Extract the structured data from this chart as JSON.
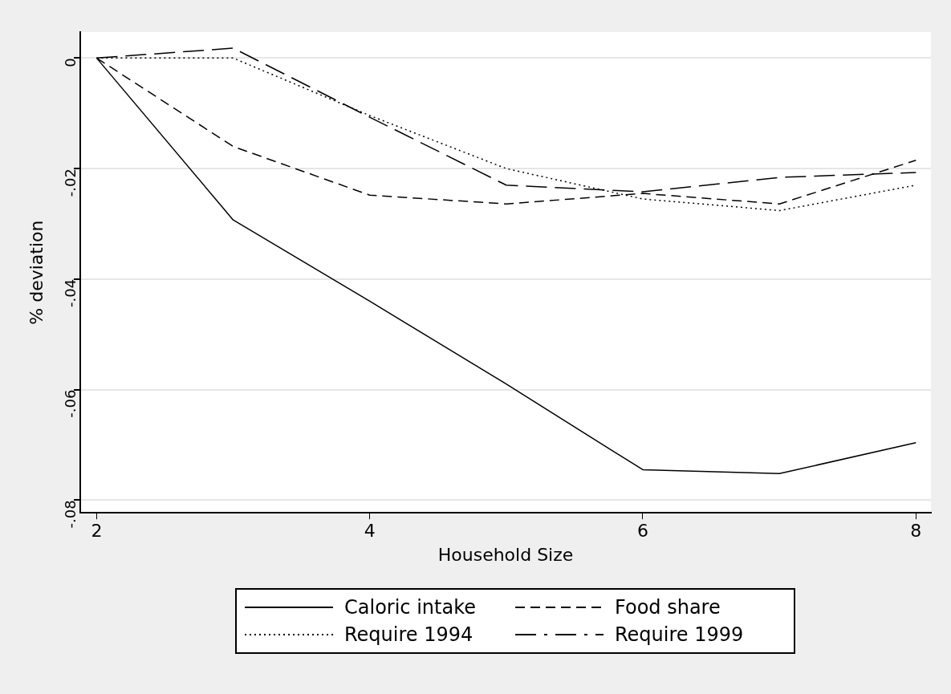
{
  "chart_data": {
    "type": "line",
    "xlabel": "Household Size",
    "ylabel": "% deviation",
    "x": [
      2,
      3,
      4,
      5,
      6,
      7,
      8
    ],
    "series": [
      {
        "name": "Caloric intake",
        "color": "#000000",
        "line_style": "solid",
        "values": [
          0,
          -0.0293,
          -0.044,
          -0.059,
          -0.0745,
          -0.0752,
          -0.0696
        ]
      },
      {
        "name": "Food share",
        "color": "#000000",
        "line_style": "dashed",
        "values": [
          0,
          -0.016,
          -0.0248,
          -0.0264,
          -0.0245,
          -0.0264,
          -0.0185
        ]
      },
      {
        "name": "Require 1994",
        "color": "#000000",
        "line_style": "dotted",
        "values": [
          0,
          0,
          -0.0104,
          -0.02,
          -0.0255,
          -0.0276,
          -0.023
        ]
      },
      {
        "name": "Require 1999",
        "color": "#000000",
        "line_style": "longdash",
        "values": [
          0,
          0.0018,
          -0.0107,
          -0.023,
          -0.0242,
          -0.0216,
          -0.0207
        ]
      }
    ],
    "xlim": [
      1.88,
      8.11
    ],
    "xticks": [
      2,
      4,
      6,
      8
    ],
    "ylim": [
      -0.0823,
      0.0047
    ],
    "yticks": [
      0,
      {
        "value": -0.02,
        "label": "-.02"
      },
      {
        "value": -0.04,
        "label": "-.04"
      },
      {
        "value": -0.06,
        "label": "-.06"
      },
      {
        "value": -0.08,
        "label": "-.08"
      }
    ],
    "grid": "y",
    "legend": "bottom",
    "marker": "none"
  }
}
